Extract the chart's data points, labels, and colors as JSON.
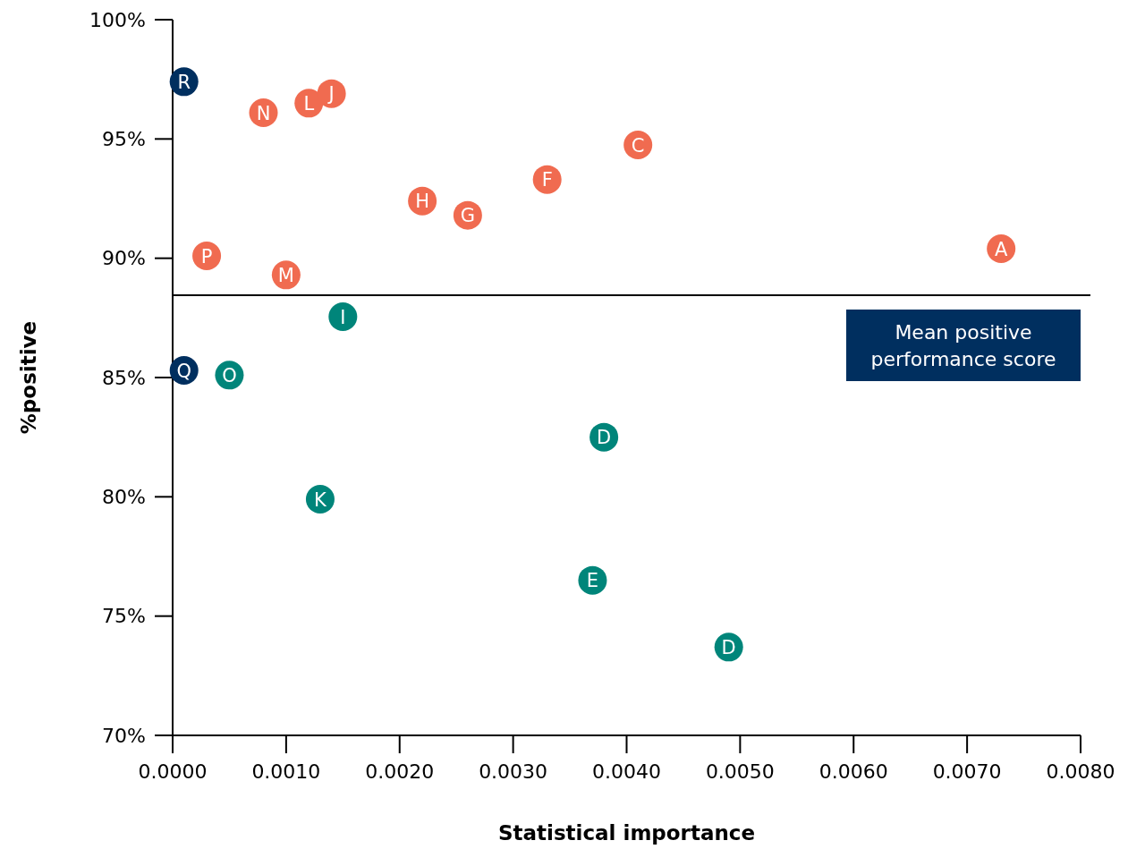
{
  "chart_data": {
    "type": "scatter",
    "xlabel": "Statistical importance",
    "ylabel": "%positive",
    "xlim": [
      0,
      0.008
    ],
    "ylim": [
      70,
      100
    ],
    "xticks": [
      {
        "value": 0,
        "label": "0.0000"
      },
      {
        "value": 0.001,
        "label": "0.0010"
      },
      {
        "value": 0.002,
        "label": "0.0020"
      },
      {
        "value": 0.003,
        "label": "0.0030"
      },
      {
        "value": 0.004,
        "label": "0.0040"
      },
      {
        "value": 0.005,
        "label": "0.0050"
      },
      {
        "value": 0.006,
        "label": "0.0060"
      },
      {
        "value": 0.007,
        "label": "0.0070"
      },
      {
        "value": 0.008,
        "label": "0.0080"
      }
    ],
    "yticks": [
      {
        "value": 70,
        "label": "70%"
      },
      {
        "value": 75,
        "label": "75%"
      },
      {
        "value": 80,
        "label": "80%"
      },
      {
        "value": 85,
        "label": "85%"
      },
      {
        "value": 90,
        "label": "90%"
      },
      {
        "value": 95,
        "label": "95%"
      },
      {
        "value": 100,
        "label": "100%"
      }
    ],
    "grid": false,
    "marker": "circle",
    "series": [
      {
        "color": "#f06b50",
        "x": [
          0.0008,
          0.0012,
          0.0014,
          0.0041,
          0.0033,
          0.0022,
          0.0026,
          0.0003,
          0.001,
          0.0073
        ],
        "values": [
          96.1,
          96.5,
          96.9,
          94.75,
          93.3,
          92.4,
          91.8,
          90.1,
          89.3,
          90.4
        ]
      },
      {
        "color": "#00857a",
        "x": [
          0.0015,
          0.0005,
          0.0038,
          0.0013,
          0.0037,
          0.0049
        ],
        "values": [
          87.55,
          85.1,
          82.5,
          79.9,
          76.5,
          73.7
        ]
      },
      {
        "color": "#002f5f",
        "x": [
          0.0001,
          0.0001
        ],
        "values": [
          97.4,
          85.3
        ]
      }
    ],
    "ref_lines": [
      {
        "axis": "y",
        "value": 88.45,
        "label": "Mean positive performance score",
        "color": "#000000"
      }
    ],
    "annotations": [
      {
        "text": "N",
        "x": 0.0008,
        "y": 96.1
      },
      {
        "text": "L",
        "x": 0.0012,
        "y": 96.5
      },
      {
        "text": "J",
        "x": 0.0014,
        "y": 96.9
      },
      {
        "text": "C",
        "x": 0.0041,
        "y": 94.75
      },
      {
        "text": "F",
        "x": 0.0033,
        "y": 93.3
      },
      {
        "text": "H",
        "x": 0.0022,
        "y": 92.4
      },
      {
        "text": "G",
        "x": 0.0026,
        "y": 91.8
      },
      {
        "text": "P",
        "x": 0.0003,
        "y": 90.1
      },
      {
        "text": "M",
        "x": 0.001,
        "y": 89.3
      },
      {
        "text": "A",
        "x": 0.0073,
        "y": 90.4
      },
      {
        "text": "I",
        "x": 0.0015,
        "y": 87.55
      },
      {
        "text": "O",
        "x": 0.0005,
        "y": 85.1
      },
      {
        "text": "D",
        "x": 0.0038,
        "y": 82.5
      },
      {
        "text": "K",
        "x": 0.0013,
        "y": 79.9
      },
      {
        "text": "E",
        "x": 0.0037,
        "y": 76.5
      },
      {
        "text": "D",
        "x": 0.0049,
        "y": 73.7
      },
      {
        "text": "R",
        "x": 0.0001,
        "y": 97.4
      },
      {
        "text": "Q",
        "x": 0.0001,
        "y": 85.3
      }
    ]
  }
}
